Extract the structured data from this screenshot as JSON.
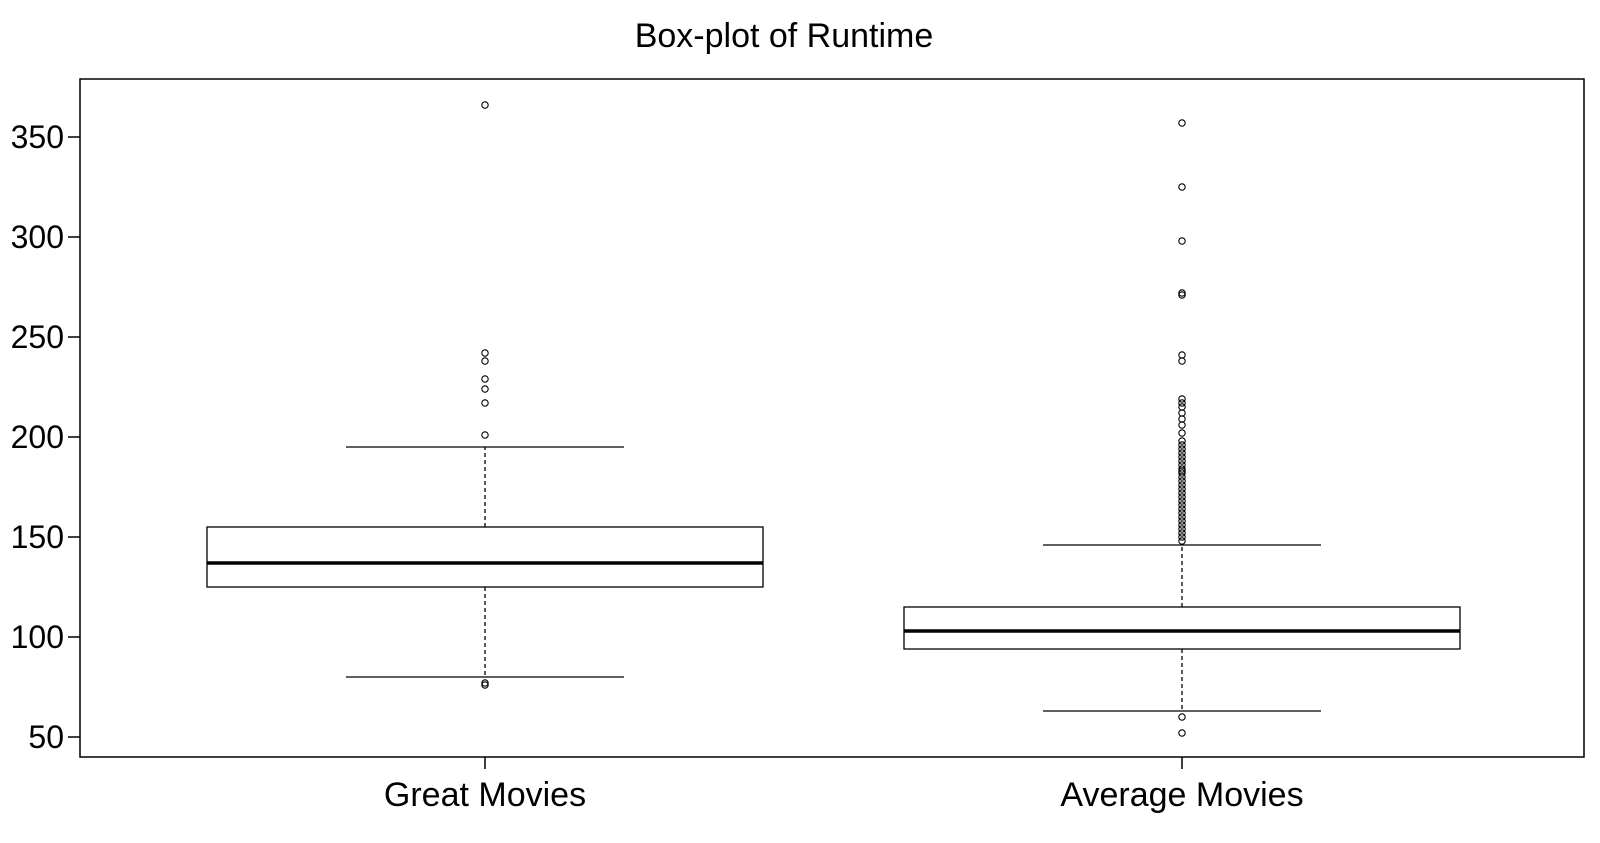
{
  "chart_data": {
    "type": "box",
    "title": "Box-plot of Runtime",
    "xlabel": "",
    "ylabel": "",
    "ylim": [
      40,
      375
    ],
    "yticks": [
      50,
      100,
      150,
      200,
      250,
      300,
      350
    ],
    "grid": false,
    "categories": [
      "Great Movies",
      "Average Movies"
    ],
    "series": [
      {
        "category": "Great Movies",
        "whisker_low": 80,
        "q1": 125,
        "median": 137,
        "q3": 155,
        "whisker_high": 195,
        "outliers": [
          76,
          77,
          201,
          217,
          224,
          229,
          238,
          242,
          366
        ]
      },
      {
        "category": "Average Movies",
        "whisker_low": 63,
        "q1": 94,
        "median": 103,
        "q3": 115,
        "whisker_high": 146,
        "outliers": [
          52,
          60,
          148,
          150,
          152,
          154,
          156,
          158,
          160,
          162,
          164,
          166,
          168,
          170,
          172,
          174,
          176,
          178,
          180,
          182,
          183,
          184,
          186,
          188,
          190,
          192,
          194,
          196,
          198,
          202,
          206,
          209,
          212,
          215,
          217,
          219,
          238,
          241,
          271,
          272,
          298,
          325,
          357
        ]
      }
    ]
  }
}
